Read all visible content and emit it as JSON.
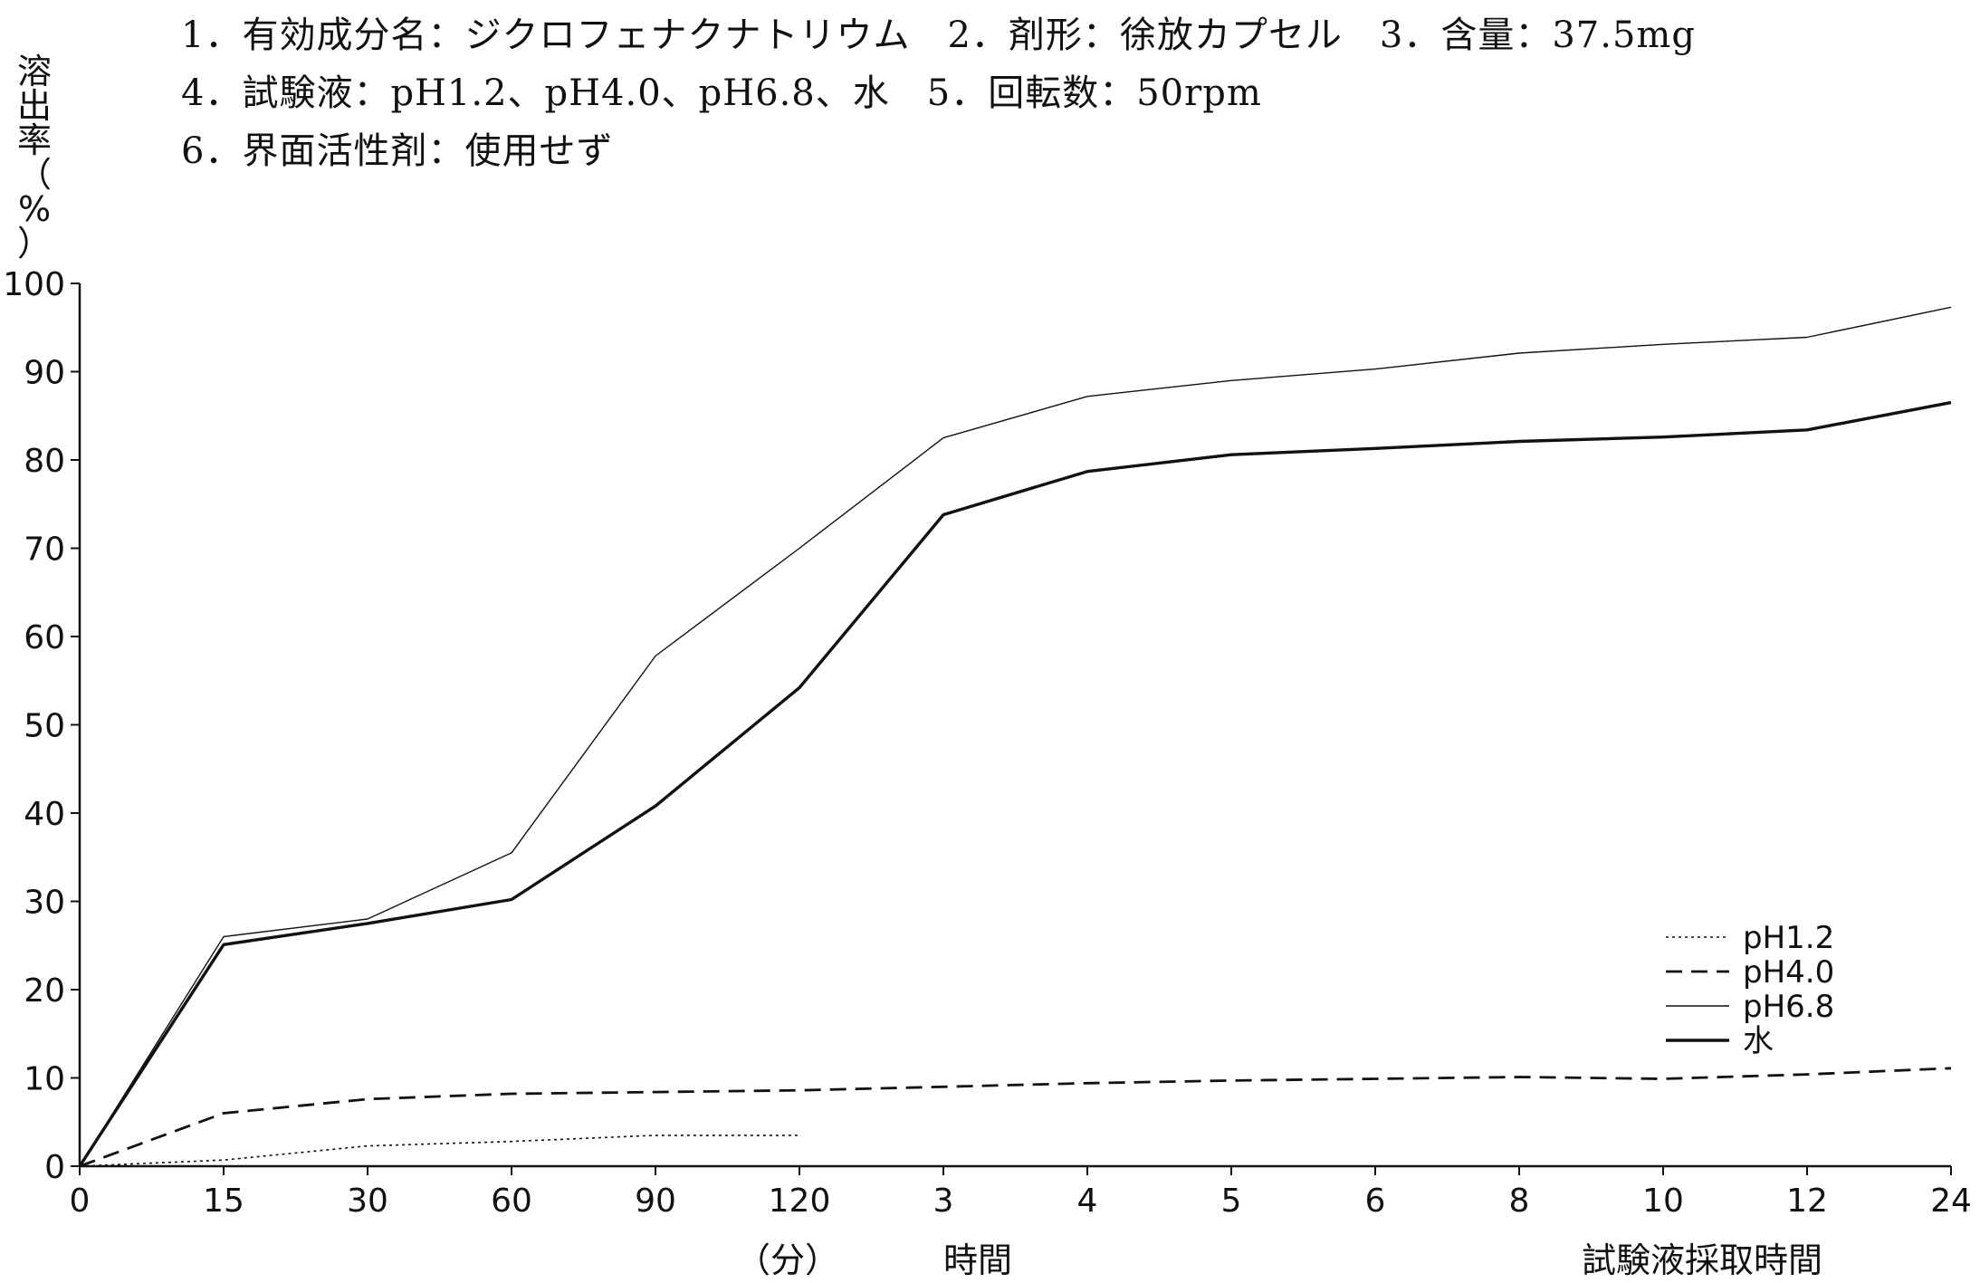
{
  "conditions": {
    "line1": "1．有効成分名：ジクロフェナクナトリウム　2．剤形：徐放カプセル　3．含量：37.5mg",
    "line2": "4．試験液：pH1.2、pH4.0、pH6.8、水　5．回転数：50rpm",
    "line3": "6．界面活性剤：使用せず"
  },
  "chart_data": {
    "type": "line",
    "ylabel_chars": [
      "溶",
      "出",
      "率",
      "（",
      "%",
      "）"
    ],
    "x_categories": [
      "0",
      "15",
      "30",
      "60",
      "90",
      "120",
      "3",
      "4",
      "5",
      "6",
      "8",
      "10",
      "12",
      "24"
    ],
    "x_unit_min": "（分）",
    "x_unit_hour": "時間",
    "xlabel": "試験液採取時間",
    "y_ticks": [
      "0",
      "10",
      "20",
      "30",
      "40",
      "50",
      "60",
      "70",
      "80",
      "90",
      "100"
    ],
    "ylim": [
      0,
      100
    ],
    "series": [
      {
        "name": "pH1.2",
        "style": "dotted",
        "values": [
          0,
          0.7,
          2.3,
          2.8,
          3.5,
          3.5
        ]
      },
      {
        "name": "pH4.0",
        "style": "dashed",
        "values": [
          0,
          6.0,
          7.6,
          8.2,
          8.4,
          8.6,
          9.0,
          9.4,
          9.7,
          9.9,
          10.1,
          9.9,
          10.4,
          11.1
        ]
      },
      {
        "name": "pH6.8",
        "style": "thin",
        "values": [
          0,
          26.0,
          28.0,
          35.5,
          57.8,
          70.0,
          82.5,
          87.2,
          89.0,
          90.3,
          92.1,
          93.1,
          93.9,
          97.3
        ]
      },
      {
        "name": "水",
        "style": "thick",
        "values": [
          0,
          25.1,
          27.5,
          30.2,
          40.8,
          54.2,
          73.8,
          78.7,
          80.6,
          81.3,
          82.1,
          82.6,
          83.4,
          86.5
        ]
      }
    ],
    "legend_position": "bottom-right",
    "grid": false
  }
}
